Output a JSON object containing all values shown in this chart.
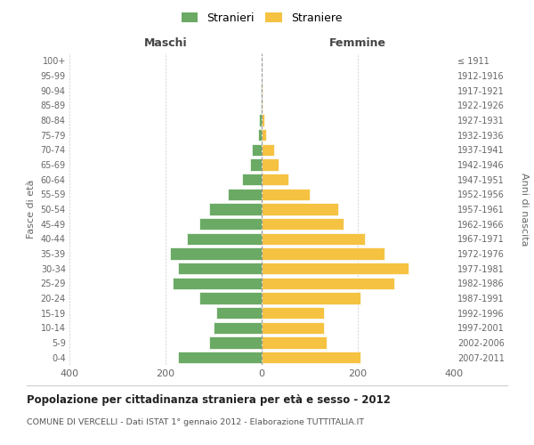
{
  "age_groups": [
    "0-4",
    "5-9",
    "10-14",
    "15-19",
    "20-24",
    "25-29",
    "30-34",
    "35-39",
    "40-44",
    "45-49",
    "50-54",
    "55-59",
    "60-64",
    "65-69",
    "70-74",
    "75-79",
    "80-84",
    "85-89",
    "90-94",
    "95-99",
    "100+"
  ],
  "birth_years": [
    "2007-2011",
    "2002-2006",
    "1997-2001",
    "1992-1996",
    "1987-1991",
    "1982-1986",
    "1977-1981",
    "1972-1976",
    "1967-1971",
    "1962-1966",
    "1957-1961",
    "1952-1956",
    "1947-1951",
    "1942-1946",
    "1937-1941",
    "1932-1936",
    "1927-1931",
    "1922-1926",
    "1917-1921",
    "1912-1916",
    "≤ 1911"
  ],
  "maschi": [
    175,
    110,
    100,
    95,
    130,
    185,
    175,
    190,
    155,
    130,
    110,
    70,
    40,
    25,
    20,
    8,
    5,
    2,
    1,
    0,
    0
  ],
  "femmine": [
    205,
    135,
    130,
    130,
    205,
    275,
    305,
    255,
    215,
    170,
    160,
    100,
    55,
    35,
    25,
    10,
    5,
    2,
    1,
    0,
    0
  ],
  "color_maschi": "#6aaa64",
  "color_femmine": "#f5c242",
  "title": "Popolazione per cittadinanza straniera per età e sesso - 2012",
  "subtitle": "COMUNE DI VERCELLI - Dati ISTAT 1° gennaio 2012 - Elaborazione TUTTITALIA.IT",
  "label_left": "Maschi",
  "label_right": "Femmine",
  "ylabel_left": "Fasce di età",
  "ylabel_right": "Anni di nascita",
  "legend_maschi": "Stranieri",
  "legend_femmine": "Straniere",
  "xlim": 400,
  "background_color": "#ffffff",
  "grid_color": "#cccccc"
}
